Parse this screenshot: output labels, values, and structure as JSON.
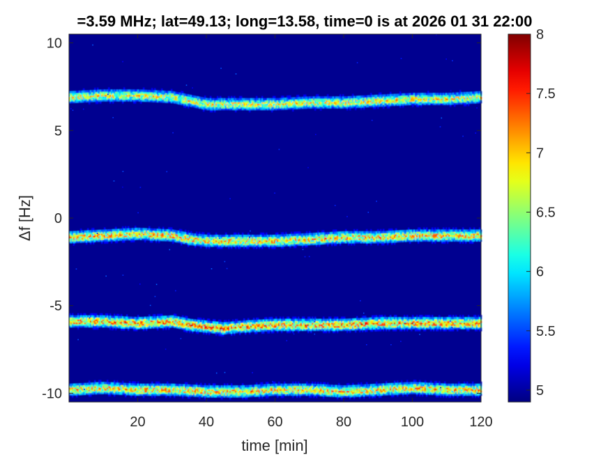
{
  "chart_data": {
    "type": "heatmap",
    "title": "=3.59 MHz;  lat=49.13; long=13.58, time=0 is at 2026 01 31 22:00",
    "xlabel": "time [min]",
    "ylabel": "Δf [Hz]",
    "xlim": [
      0,
      120
    ],
    "ylim": [
      -10.5,
      10.5
    ],
    "x_ticks": [
      20,
      40,
      60,
      80,
      100,
      120
    ],
    "y_ticks": [
      -10,
      -5,
      0,
      5,
      10
    ],
    "x_tick_labels": [
      "20",
      "40",
      "60",
      "80",
      "100",
      "120"
    ],
    "y_tick_labels": [
      "-10",
      "-5",
      "0",
      "5",
      "10"
    ],
    "colorbar": {
      "range": [
        4.9,
        8
      ],
      "ticks": [
        5,
        5.5,
        6,
        6.5,
        7,
        7.5,
        8
      ],
      "tick_labels": [
        "5",
        "5.5",
        "6",
        "6.5",
        "7",
        "7.5",
        "8"
      ],
      "colormap": "jet"
    },
    "background_value": 4.95,
    "bands": [
      {
        "center_curve": [
          [
            0,
            6.9
          ],
          [
            10,
            7.0
          ],
          [
            20,
            7.0
          ],
          [
            30,
            6.9
          ],
          [
            35,
            6.7
          ],
          [
            40,
            6.5
          ],
          [
            50,
            6.5
          ],
          [
            60,
            6.5
          ],
          [
            70,
            6.6
          ],
          [
            80,
            6.6
          ],
          [
            90,
            6.7
          ],
          [
            100,
            6.8
          ],
          [
            110,
            6.8
          ],
          [
            120,
            6.9
          ]
        ],
        "peak_value": 6.8
      },
      {
        "center_curve": [
          [
            0,
            -1.1
          ],
          [
            10,
            -1.0
          ],
          [
            20,
            -0.9
          ],
          [
            30,
            -1.0
          ],
          [
            35,
            -1.2
          ],
          [
            40,
            -1.3
          ],
          [
            45,
            -1.3
          ],
          [
            50,
            -1.3
          ],
          [
            60,
            -1.3
          ],
          [
            70,
            -1.2
          ],
          [
            80,
            -1.1
          ],
          [
            90,
            -1.1
          ],
          [
            100,
            -1.0
          ],
          [
            110,
            -1.0
          ],
          [
            120,
            -1.0
          ]
        ],
        "peak_value": 7.0
      },
      {
        "center_curve": [
          [
            0,
            -5.9
          ],
          [
            10,
            -5.9
          ],
          [
            20,
            -6.0
          ],
          [
            30,
            -5.9
          ],
          [
            35,
            -6.1
          ],
          [
            40,
            -6.2
          ],
          [
            45,
            -6.3
          ],
          [
            50,
            -6.2
          ],
          [
            60,
            -6.1
          ],
          [
            70,
            -6.1
          ],
          [
            80,
            -6.1
          ],
          [
            90,
            -6.0
          ],
          [
            100,
            -6.0
          ],
          [
            110,
            -6.0
          ],
          [
            120,
            -6.0
          ]
        ],
        "peak_value": 7.2
      },
      {
        "center_curve": [
          [
            0,
            -9.8
          ],
          [
            10,
            -9.7
          ],
          [
            20,
            -9.8
          ],
          [
            30,
            -9.8
          ],
          [
            40,
            -9.9
          ],
          [
            50,
            -9.9
          ],
          [
            60,
            -9.8
          ],
          [
            70,
            -9.8
          ],
          [
            80,
            -9.9
          ],
          [
            90,
            -9.8
          ],
          [
            100,
            -9.7
          ],
          [
            110,
            -9.8
          ],
          [
            120,
            -9.8
          ]
        ],
        "peak_value": 7.0
      }
    ]
  }
}
